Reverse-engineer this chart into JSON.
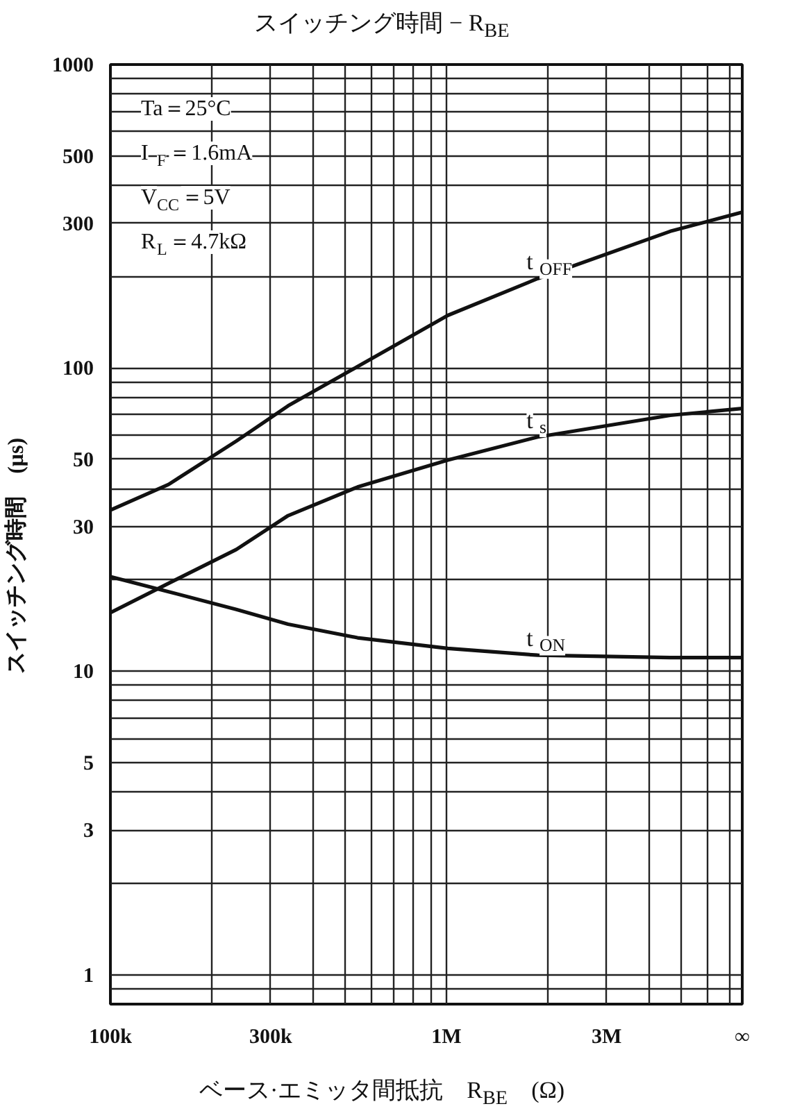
{
  "chart_data": {
    "type": "line",
    "title": "スイッチング時間 − R$_{BE}$",
    "xlabel": "ベース·エミッタ間抵抗　R$_{BE}$　(Ω)",
    "ylabel": "スイッチング時間　(μs)",
    "log": "xy",
    "grid": true,
    "x": [
      100000,
      149000,
      237000,
      338000,
      544000,
      1010000,
      1870000,
      4640000,
      7600000
    ],
    "series": [
      {
        "name": "t$_{OFF}$",
        "color": "#111111",
        "values": [
          34,
          41.3,
          57.4,
          75,
          101,
          149,
          197,
          282,
          326
        ]
      },
      {
        "name": "t$_{s}$",
        "color": "#111111",
        "values": [
          15.6,
          19.5,
          25.2,
          32.6,
          40.5,
          49.7,
          59.2,
          69.8,
          73.5
        ]
      },
      {
        "name": "t$_{ON}$",
        "color": "#111111",
        "values": [
          20.5,
          18.3,
          16.0,
          14.3,
          12.9,
          11.9,
          11.3,
          11.1,
          11.1
        ]
      }
    ],
    "xlim": [
      100000,
      7600000
    ],
    "xticks": [
      {
        "value": 100000,
        "label": "100k"
      },
      {
        "value": 200000,
        "label": null
      },
      {
        "value": 300000,
        "label": "300k"
      },
      {
        "value": 400000,
        "label": null
      },
      {
        "value": 500000,
        "label": null
      },
      {
        "value": 600000,
        "label": null
      },
      {
        "value": 700000,
        "label": null
      },
      {
        "value": 800000,
        "label": null
      },
      {
        "value": 900000,
        "label": null
      },
      {
        "value": 1000000,
        "label": "1M"
      },
      {
        "value": 2000000,
        "label": null
      },
      {
        "value": 3000000,
        "label": "3M"
      },
      {
        "value": 4000000,
        "label": null
      },
      {
        "value": 5000000,
        "label": null
      },
      {
        "value": 6000000,
        "label": null
      },
      {
        "value": 7000000,
        "label": null
      },
      {
        "value": 7600000,
        "label": "∞"
      }
    ],
    "ylim": [
      0.8,
      1000
    ],
    "yticks": [
      {
        "value": 0.9,
        "label": null
      },
      1,
      {
        "value": 2,
        "label": null
      },
      3,
      {
        "value": 4,
        "label": null
      },
      5,
      {
        "value": 6,
        "label": null
      },
      {
        "value": 7,
        "label": null
      },
      {
        "value": 8,
        "label": null
      },
      {
        "value": 9,
        "label": null
      },
      10,
      {
        "value": 20,
        "label": null
      },
      30,
      {
        "value": 40,
        "label": null
      },
      50,
      {
        "value": 60,
        "label": null
      },
      {
        "value": 70,
        "label": null
      },
      {
        "value": 80,
        "label": null
      },
      {
        "value": 90,
        "label": null
      },
      100,
      {
        "value": 200,
        "label": null
      },
      300,
      {
        "value": 400,
        "label": null
      },
      500,
      {
        "value": 600,
        "label": null
      },
      {
        "value": 700,
        "label": null
      },
      {
        "value": 800,
        "label": null
      },
      {
        "value": 900,
        "label": null
      },
      1000
    ],
    "annotations": [
      "Ta＝25°C",
      "I$_{F}$＝1.6mA",
      "V$_{CC}$＝5V",
      "R$_{L}$＝4.7kΩ"
    ]
  }
}
